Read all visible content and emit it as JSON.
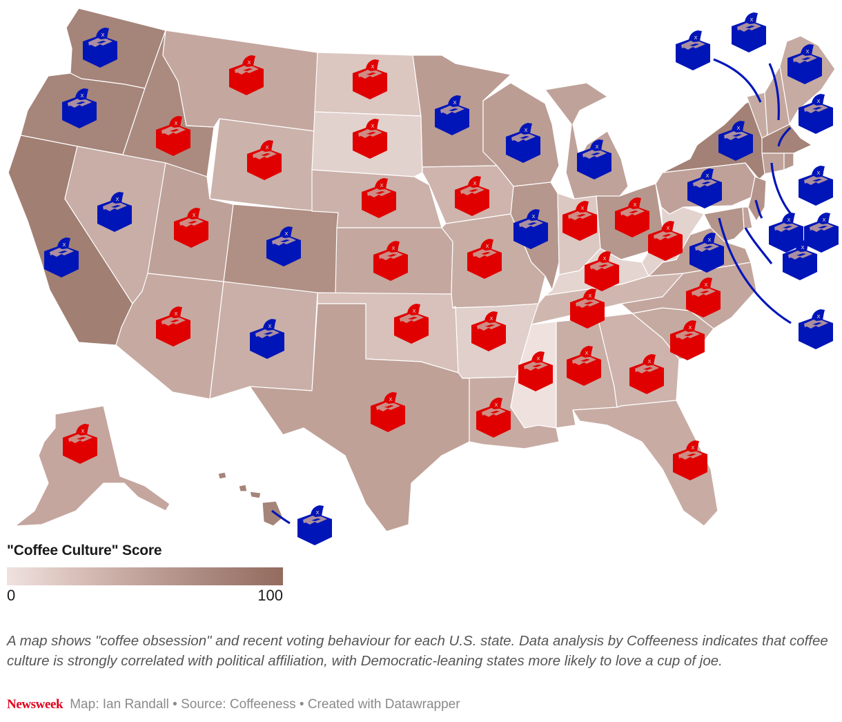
{
  "legend": {
    "title": "\"Coffee Culture\" Score",
    "min_label": "0",
    "max_label": "100",
    "gradient": [
      "#efe2df",
      "#d9c0b9",
      "#bfa199",
      "#a7857b",
      "#946b5f"
    ]
  },
  "colors": {
    "republican": "#e00000",
    "democrat": "#0015b8",
    "icon_cutout": "#c9a59b",
    "border": "#ffffff"
  },
  "states": [
    {
      "abbr": "WA",
      "party": "democrat",
      "fill": "#a58479",
      "icon": [
        145,
        68
      ]
    },
    {
      "abbr": "OR",
      "party": "democrat",
      "fill": "#a6857a",
      "icon": [
        115,
        156
      ]
    },
    {
      "abbr": "CA",
      "party": "democrat",
      "fill": "#a17f73",
      "icon": [
        89,
        372
      ]
    },
    {
      "abbr": "ID",
      "party": "republican",
      "fill": "#ab8b80",
      "icon": [
        251,
        196
      ]
    },
    {
      "abbr": "NV",
      "party": "democrat",
      "fill": "#c8aea6",
      "icon": [
        166,
        306
      ]
    },
    {
      "abbr": "MT",
      "party": "republican",
      "fill": "#c4a79f",
      "icon": [
        357,
        108
      ]
    },
    {
      "abbr": "WY",
      "party": "republican",
      "fill": "#cbb2ab",
      "icon": [
        383,
        231
      ]
    },
    {
      "abbr": "UT",
      "party": "republican",
      "fill": "#bea199",
      "icon": [
        277,
        329
      ]
    },
    {
      "abbr": "AZ",
      "party": "republican",
      "fill": "#c6aaa2",
      "icon": [
        251,
        472
      ]
    },
    {
      "abbr": "CO",
      "party": "democrat",
      "fill": "#b08f84",
      "icon": [
        411,
        356
      ]
    },
    {
      "abbr": "NM",
      "party": "democrat",
      "fill": "#c9afa7",
      "icon": [
        387,
        490
      ]
    },
    {
      "abbr": "ND",
      "party": "republican",
      "fill": "#dbc6c0",
      "icon": [
        536,
        114
      ]
    },
    {
      "abbr": "SD",
      "party": "republican",
      "fill": "#e2d2cd",
      "icon": [
        536,
        200
      ]
    },
    {
      "abbr": "NE",
      "party": "republican",
      "fill": "#cbb1a9",
      "icon": [
        549,
        286
      ]
    },
    {
      "abbr": "KS",
      "party": "republican",
      "fill": "#c4a79f",
      "icon": [
        566,
        377
      ]
    },
    {
      "abbr": "OK",
      "party": "republican",
      "fill": "#d7c1ba",
      "icon": [
        596,
        468
      ]
    },
    {
      "abbr": "TX",
      "party": "republican",
      "fill": "#bfa198",
      "icon": [
        562,
        596
      ]
    },
    {
      "abbr": "MN",
      "party": "democrat",
      "fill": "#bb9c93",
      "icon": [
        655,
        166
      ]
    },
    {
      "abbr": "IA",
      "party": "republican",
      "fill": "#ceb4ad",
      "icon": [
        684,
        283
      ]
    },
    {
      "abbr": "MO",
      "party": "republican",
      "fill": "#c8ada5",
      "icon": [
        702,
        374
      ]
    },
    {
      "abbr": "AR",
      "party": "republican",
      "fill": "#e0cfca",
      "icon": [
        708,
        479
      ]
    },
    {
      "abbr": "LA",
      "party": "republican",
      "fill": "#c7aba3",
      "icon": [
        715,
        604
      ]
    },
    {
      "abbr": "WI",
      "party": "democrat",
      "fill": "#bb9d94",
      "icon": [
        758,
        206
      ]
    },
    {
      "abbr": "IL",
      "party": "democrat",
      "fill": "#b6978d",
      "icon": [
        769,
        331
      ]
    },
    {
      "abbr": "MI",
      "party": "democrat",
      "fill": "#bfa299",
      "icon": [
        861,
        230
      ]
    },
    {
      "abbr": "IN",
      "party": "republican",
      "fill": "#dcc8c2",
      "icon": [
        840,
        319
      ]
    },
    {
      "abbr": "OH",
      "party": "republican",
      "fill": "#b6978d",
      "icon": [
        916,
        314
      ]
    },
    {
      "abbr": "KY",
      "party": "republican",
      "fill": "#e4d5d0",
      "icon": [
        872,
        392
      ]
    },
    {
      "abbr": "TN",
      "party": "republican",
      "fill": "#cfb7b0",
      "icon": [
        851,
        446
      ]
    },
    {
      "abbr": "MS",
      "party": "republican",
      "fill": "#efe2de",
      "icon": [
        776,
        537
      ]
    },
    {
      "abbr": "AL",
      "party": "republican",
      "fill": "#c9aea6",
      "icon": [
        846,
        529
      ]
    },
    {
      "abbr": "GA",
      "party": "republican",
      "fill": "#cdb3ab",
      "icon": [
        937,
        541
      ]
    },
    {
      "abbr": "FL",
      "party": "republican",
      "fill": "#c8aca4",
      "icon": [
        1000,
        666
      ]
    },
    {
      "abbr": "SC",
      "party": "republican",
      "fill": "#c5aaa1",
      "icon": [
        996,
        492
      ]
    },
    {
      "abbr": "NC",
      "party": "republican",
      "fill": "#c3a69e",
      "icon": [
        1019,
        430
      ]
    },
    {
      "abbr": "VA",
      "party": "democrat",
      "fill": "#bea097",
      "icon": [
        1024,
        365
      ]
    },
    {
      "abbr": "WV",
      "party": "republican",
      "fill": "#e3d3ce",
      "icon": [
        964,
        348
      ]
    },
    {
      "abbr": "PA",
      "party": "democrat",
      "fill": "#bfa199",
      "icon": [
        1021,
        272
      ]
    },
    {
      "abbr": "NY",
      "party": "democrat",
      "fill": "#a38176",
      "icon": [
        1066,
        203
      ]
    },
    {
      "abbr": "VT",
      "party": "democrat",
      "fill": "#c6aba3",
      "icon": [
        1004,
        72
      ]
    },
    {
      "abbr": "NH",
      "party": "democrat",
      "fill": "#c4a89f",
      "icon": [
        1085,
        46
      ]
    },
    {
      "abbr": "ME",
      "party": "democrat",
      "fill": "#c6aba3",
      "icon": [
        1166,
        92
      ]
    },
    {
      "abbr": "MA",
      "party": "democrat",
      "fill": "#a58378",
      "icon": [
        1182,
        164
      ]
    },
    {
      "abbr": "RI",
      "party": "democrat",
      "fill": "#b6978e",
      "icon": [
        1182,
        268
      ]
    },
    {
      "abbr": "CT",
      "party": "democrat",
      "fill": "#bfa29a",
      "icon": [
        1139,
        336
      ]
    },
    {
      "abbr": "NJ",
      "party": "democrat",
      "fill": "#b3938a",
      "icon": [
        1190,
        336
      ]
    },
    {
      "abbr": "DE",
      "party": "democrat",
      "fill": "#bfa29a",
      "icon": [
        1159,
        376
      ]
    },
    {
      "abbr": "MD",
      "party": "democrat",
      "fill": "#b4958b",
      "icon": [
        1182,
        476
      ]
    },
    {
      "abbr": "AK",
      "party": "republican",
      "fill": "#c4a69e",
      "icon": [
        116,
        642
      ]
    },
    {
      "abbr": "HI",
      "party": "democrat",
      "fill": "#a58479",
      "icon": [
        456,
        760
      ]
    }
  ],
  "notes": "A map shows \"coffee obsession\" and recent voting behaviour for each U.S. state. Data analysis by Coffeeness indicates that coffee culture is strongly correlated with political affiliation, with Democratic-leaning states more likely to love a cup of joe.",
  "footer": {
    "brand": "Newsweek",
    "credits": "Map: Ian Randall • Source: Coffeeness • Created with Datawrapper"
  }
}
